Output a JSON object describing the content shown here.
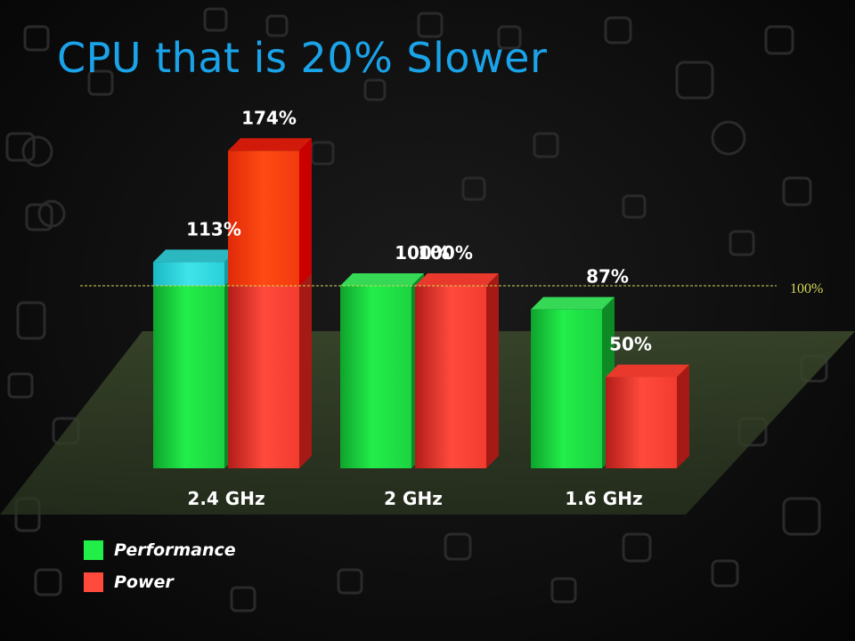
{
  "title": "CPU that is 20% Slower",
  "colors": {
    "title": "#1aa3e8",
    "performance": "#1ef24a",
    "power": "#ff4a3c",
    "highlight_top": "#3fe4ea",
    "highlight_power": "#ff3a10",
    "reference_line": "#d4d85a"
  },
  "legend": [
    {
      "label": "Performance",
      "color": "#22ee4a"
    },
    {
      "label": "Power",
      "color": "#ff4a3c"
    }
  ],
  "chart_data": {
    "type": "bar",
    "categories": [
      "2.4 GHz",
      "2 GHz",
      "1.6 GHz"
    ],
    "series": [
      {
        "name": "Performance",
        "values": [
          113,
          100,
          87
        ],
        "labels": [
          "113%",
          "100%",
          "87%"
        ]
      },
      {
        "name": "Power",
        "values": [
          174,
          100,
          50
        ],
        "labels": [
          "174%",
          "100%",
          "50%"
        ]
      }
    ],
    "reference_line": {
      "value": 100,
      "label": "100%"
    },
    "ylim": [
      0,
      174
    ],
    "legend_position": "bottom-left",
    "grid": false
  }
}
